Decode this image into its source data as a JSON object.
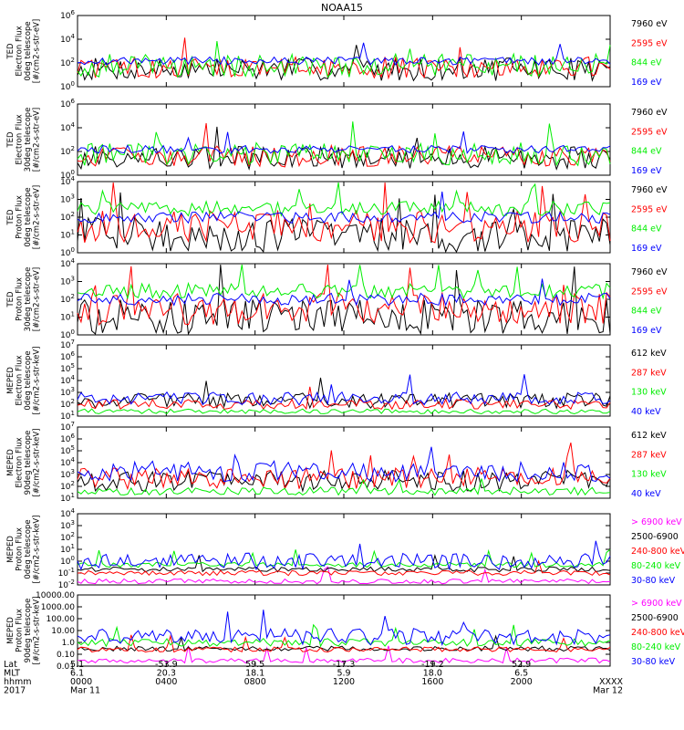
{
  "title": "NOAA15",
  "colors": {
    "blue": "#0000ff",
    "red": "#ff0000",
    "green": "#00ee00",
    "black": "#000000",
    "magenta": "#ff00ff"
  },
  "chart_data": [
    {
      "type": "line",
      "ylabel": [
        "TED",
        "Electron Flux",
        "0deg telescope",
        "[#/cm2-s-str-eV]"
      ],
      "yscale": "log",
      "ylim": [
        1,
        1000000
      ],
      "ytick_labels": [
        "10^0",
        "10^2",
        "10^4",
        "10^6"
      ],
      "series": [
        {
          "name": "7960 eV",
          "color": "#000000",
          "base": 30,
          "spread": 25
        },
        {
          "name": "2595 eV",
          "color": "#ff0000",
          "base": 40,
          "spread": 20
        },
        {
          "name": "844 eV",
          "color": "#00ee00",
          "base": 60,
          "spread": 25
        },
        {
          "name": "169 eV",
          "color": "#0000ff",
          "base": 150,
          "spread": 3
        }
      ]
    },
    {
      "type": "line",
      "ylabel": [
        "TED",
        "Electron Flux",
        "30deg telescope",
        "[#/cm2-s-str-eV]"
      ],
      "yscale": "log",
      "ylim": [
        1,
        1000000
      ],
      "ytick_labels": [
        "10^0",
        "10^2",
        "10^4",
        "10^6"
      ],
      "series": [
        {
          "name": "7960 eV",
          "color": "#000000",
          "base": 30,
          "spread": 25
        },
        {
          "name": "2595 eV",
          "color": "#ff0000",
          "base": 40,
          "spread": 20
        },
        {
          "name": "844 eV",
          "color": "#00ee00",
          "base": 60,
          "spread": 25
        },
        {
          "name": "169 eV",
          "color": "#0000ff",
          "base": 150,
          "spread": 3
        }
      ]
    },
    {
      "type": "line",
      "ylabel": [
        "TED",
        "Proton Flux",
        "0deg telescope",
        "[#/cm2-s-str-eV]"
      ],
      "yscale": "log",
      "ylim": [
        1,
        10000
      ],
      "ytick_labels": [
        "10^0",
        "10^1",
        "10^2",
        "10^3",
        "10^4"
      ],
      "series": [
        {
          "name": "7960 eV",
          "color": "#000000",
          "base": 10,
          "spread": 25
        },
        {
          "name": "2595 eV",
          "color": "#ff0000",
          "base": 30,
          "spread": 20
        },
        {
          "name": "844 eV",
          "color": "#00ee00",
          "base": 300,
          "spread": 4
        },
        {
          "name": "169 eV",
          "color": "#0000ff",
          "base": 100,
          "spread": 3
        }
      ]
    },
    {
      "type": "line",
      "ylabel": [
        "TED",
        "Proton Flux",
        "30deg telescope",
        "[#/cm2-s-str-eV]"
      ],
      "yscale": "log",
      "ylim": [
        1,
        10000
      ],
      "ytick_labels": [
        "10^0",
        "10^1",
        "10^2",
        "10^3",
        "10^4"
      ],
      "series": [
        {
          "name": "7960 eV",
          "color": "#000000",
          "base": 10,
          "spread": 25
        },
        {
          "name": "2595 eV",
          "color": "#ff0000",
          "base": 30,
          "spread": 20
        },
        {
          "name": "844 eV",
          "color": "#00ee00",
          "base": 300,
          "spread": 4
        },
        {
          "name": "169 eV",
          "color": "#0000ff",
          "base": 100,
          "spread": 3
        }
      ]
    },
    {
      "type": "line",
      "ylabel": [
        "MEPED",
        "Electron Flux",
        "0deg telescope",
        "[#/cm2-s-str-keV]"
      ],
      "yscale": "log",
      "ylim": [
        10,
        10000000
      ],
      "ytick_labels": [
        "10^1",
        "10^2",
        "10^3",
        "10^4",
        "10^5",
        "10^6",
        "10^7"
      ],
      "series": [
        {
          "name": "612 keV",
          "color": "#000000",
          "base": 200,
          "spread": 8
        },
        {
          "name": "287 keV",
          "color": "#ff0000",
          "base": 100,
          "spread": 4
        },
        {
          "name": "130 keV",
          "color": "#00ee00",
          "base": 25,
          "spread": 2
        },
        {
          "name": "40 keV",
          "color": "#0000ff",
          "base": 300,
          "spread": 6
        }
      ]
    },
    {
      "type": "line",
      "ylabel": [
        "MEPED",
        "Electron Flux",
        "90deg telescope",
        "[#/cm2-s-str-keV]"
      ],
      "yscale": "log",
      "ylim": [
        10,
        10000000
      ],
      "ytick_labels": [
        "10^1",
        "10^2",
        "10^3",
        "10^4",
        "10^5",
        "10^6",
        "10^7"
      ],
      "series": [
        {
          "name": "612 keV",
          "color": "#000000",
          "base": 300,
          "spread": 20
        },
        {
          "name": "287 keV",
          "color": "#ff0000",
          "base": 500,
          "spread": 20
        },
        {
          "name": "130 keV",
          "color": "#00ee00",
          "base": 40,
          "spread": 3
        },
        {
          "name": "40 keV",
          "color": "#0000ff",
          "base": 2000,
          "spread": 20
        }
      ]
    },
    {
      "type": "line",
      "ylabel": [
        "MEPED",
        "Proton Flux",
        "0deg telescope",
        "[#/cm2-s-str-keV]"
      ],
      "yscale": "log",
      "ylim": [
        0.01,
        10000
      ],
      "ytick_labels": [
        "10^-2",
        "10^-1",
        "10^0",
        "10^1",
        "10^2",
        "10^3",
        "10^4"
      ],
      "series": [
        {
          "name": "> 6900 keV",
          "color": "#ff00ff",
          "base": 0.02,
          "spread": 2
        },
        {
          "name": "2500-6900",
          "color": "#000000",
          "base": 0.2,
          "spread": 2
        },
        {
          "name": "240-800 keV",
          "color": "#ff0000",
          "base": 0.1,
          "spread": 2
        },
        {
          "name": "80-240 keV",
          "color": "#00ee00",
          "base": 0.5,
          "spread": 2
        },
        {
          "name": "30-80 keV",
          "color": "#0000ff",
          "base": 1,
          "spread": 10
        }
      ]
    },
    {
      "type": "line",
      "ylabel": [
        "MEPED",
        "Proton Flux",
        "90deg telescope",
        "[#/cm2-s-str-keV]"
      ],
      "yscale": "log",
      "ylim": [
        0.01,
        10000
      ],
      "ytick_labels": [
        "0.01",
        "0.10",
        "1.0",
        "10.00",
        "100.00",
        "1000.00",
        "10000.00"
      ],
      "series": [
        {
          "name": "> 6900 keV",
          "color": "#ff00ff",
          "base": 0.03,
          "spread": 2
        },
        {
          "name": "2500-6900",
          "color": "#000000",
          "base": 0.3,
          "spread": 2
        },
        {
          "name": "240-800 keV",
          "color": "#ff0000",
          "base": 0.25,
          "spread": 2
        },
        {
          "name": "80-240 keV",
          "color": "#00ee00",
          "base": 1,
          "spread": 3
        },
        {
          "name": "30-80 keV",
          "color": "#0000ff",
          "base": 3,
          "spread": 10
        }
      ]
    }
  ],
  "x_axis": {
    "row_labels": [
      "Lat",
      "MLT",
      "hhmm",
      "2017"
    ],
    "columns": [
      {
        "lat": "5.1",
        "mlt": "6.1",
        "hhmm": "0000",
        "date": "Mar 11"
      },
      {
        "lat": "-53.9",
        "mlt": "20.3",
        "hhmm": "0400",
        "date": ""
      },
      {
        "lat": "59.5",
        "mlt": "18.1",
        "hhmm": "0800",
        "date": ""
      },
      {
        "lat": "-17.3",
        "mlt": "5.9",
        "hhmm": "1200",
        "date": ""
      },
      {
        "lat": "-19.2",
        "mlt": "18.0",
        "hhmm": "1600",
        "date": ""
      },
      {
        "lat": "52.9",
        "mlt": "6.5",
        "hhmm": "2000",
        "date": ""
      },
      {
        "lat": "",
        "mlt": "",
        "hhmm": "XXXX",
        "date": "Mar 12"
      }
    ]
  }
}
